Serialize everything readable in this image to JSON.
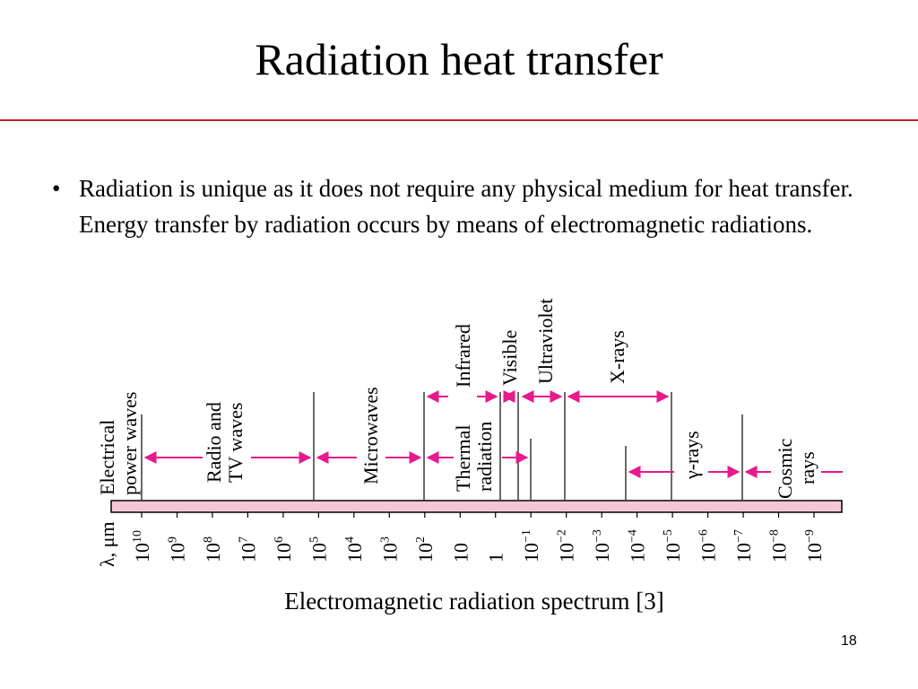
{
  "slide": {
    "title": "Radiation heat transfer",
    "bullet_symbol": "•",
    "bullet_text": "Radiation is unique as it does not require any physical medium for heat transfer. Energy transfer by radiation occurs by means of electromagnetic radiations.",
    "caption": "Electromagnetic radiation spectrum [3]",
    "page_number": "18",
    "accent_color": "#c8202a"
  },
  "diagram": {
    "axis_label": "λ, μm",
    "bar_color": "#f7c6d6",
    "arrow_color": "#e8198b",
    "ticks": [
      {
        "base": "10",
        "exp": "10"
      },
      {
        "base": "10",
        "exp": "9"
      },
      {
        "base": "10",
        "exp": "8"
      },
      {
        "base": "10",
        "exp": "7"
      },
      {
        "base": "10",
        "exp": "6"
      },
      {
        "base": "10",
        "exp": "5"
      },
      {
        "base": "10",
        "exp": "4"
      },
      {
        "base": "10",
        "exp": "3"
      },
      {
        "base": "10",
        "exp": "2"
      },
      {
        "base": "10",
        "exp": ""
      },
      {
        "base": "1",
        "exp": ""
      },
      {
        "base": "10",
        "exp": "−1"
      },
      {
        "base": "10",
        "exp": "−2"
      },
      {
        "base": "10",
        "exp": "−3"
      },
      {
        "base": "10",
        "exp": "−4"
      },
      {
        "base": "10",
        "exp": "−5"
      },
      {
        "base": "10",
        "exp": "−6"
      },
      {
        "base": "10",
        "exp": "−7"
      },
      {
        "base": "10",
        "exp": "−8"
      },
      {
        "base": "10",
        "exp": "−9"
      }
    ],
    "bands": {
      "electrical_power": [
        "Electrical",
        "power waves"
      ],
      "radio_tv": [
        "Radio and",
        "TV waves"
      ],
      "microwaves": [
        "Microwaves"
      ],
      "thermal_radiation": [
        "Thermal",
        "radiation"
      ],
      "infrared": [
        "Infrared"
      ],
      "visible": [
        "Visible"
      ],
      "ultraviolet": [
        "Ultraviolet"
      ],
      "x_rays": [
        "X-rays"
      ],
      "gamma_rays": [
        "γ-rays"
      ],
      "cosmic_rays": [
        "Cosmic",
        "rays"
      ]
    }
  }
}
